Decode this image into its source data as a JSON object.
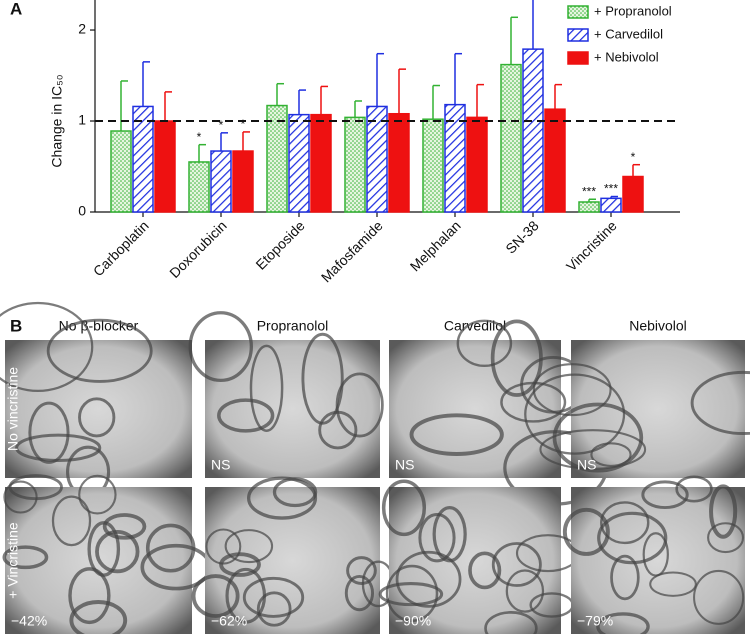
{
  "chart_data": {
    "type": "bar",
    "panel_label": "A",
    "ylabel": "Change in IC₅₀",
    "categories": [
      "Carboplatin",
      "Doxorubicin",
      "Etoposide",
      "Mafosfamide",
      "Melphalan",
      "SN-38",
      "Vincristine"
    ],
    "series": [
      {
        "name": "+ Propranolol",
        "color": "#33b233",
        "pattern": "dots",
        "values": [
          0.89,
          0.55,
          1.17,
          1.04,
          1.02,
          1.62,
          0.11
        ],
        "errors": [
          0.55,
          0.19,
          0.24,
          0.18,
          0.37,
          0.52,
          0.03
        ],
        "significance": [
          null,
          "*",
          null,
          null,
          null,
          null,
          "***"
        ]
      },
      {
        "name": "+ Carvedilol",
        "color": "#1f2fe0",
        "pattern": "hatch",
        "values": [
          1.16,
          0.67,
          1.07,
          1.16,
          1.18,
          1.79,
          0.15
        ],
        "errors": [
          0.49,
          0.2,
          0.27,
          0.58,
          0.56,
          0.56,
          0.02
        ],
        "significance": [
          null,
          "*",
          null,
          null,
          null,
          null,
          "***"
        ]
      },
      {
        "name": "+ Nebivolol",
        "color": "#ee1111",
        "pattern": "solid",
        "values": [
          1.0,
          0.67,
          1.07,
          1.08,
          1.04,
          1.13,
          0.39
        ],
        "errors": [
          0.32,
          0.21,
          0.31,
          0.49,
          0.36,
          0.27,
          0.13
        ],
        "significance": [
          null,
          "*",
          null,
          null,
          null,
          null,
          "*"
        ]
      }
    ],
    "ylim": [
      0,
      2.33
    ],
    "yticks": [
      0,
      1,
      2
    ],
    "reference_line": 1,
    "legend": "top-right"
  },
  "panel_b": {
    "panel_label": "B",
    "columns": [
      "No β-blocker",
      "Propranolol",
      "Carvedilol",
      "Nebivolol"
    ],
    "rows": [
      "No vincristine",
      "+ Vincristine"
    ],
    "cells": [
      [
        null,
        "NS",
        "NS",
        "NS"
      ],
      [
        "−42%",
        "−62%",
        "−90%",
        "−79%"
      ]
    ]
  }
}
